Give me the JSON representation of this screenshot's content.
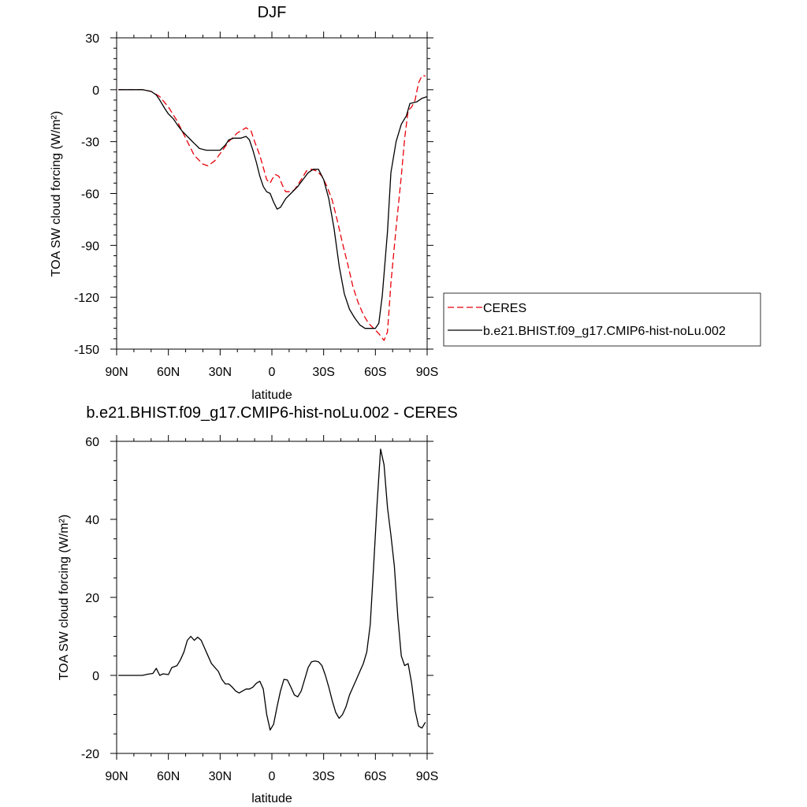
{
  "chart_data": [
    {
      "type": "line",
      "title": "DJF",
      "xlabel": "latitude",
      "ylabel": "TOA SW cloud forcing (W/m²)",
      "xlim": [
        90,
        -90
      ],
      "ylim": [
        -150,
        30
      ],
      "yticks": [
        30,
        0,
        -30,
        -60,
        -90,
        -120,
        -150
      ],
      "ytick_labels": [
        "30",
        "0",
        "-30",
        "-60",
        "-90",
        "-120",
        "-150"
      ],
      "xticks": [
        90,
        60,
        30,
        0,
        -30,
        -60,
        -90
      ],
      "xtick_labels": [
        "90N",
        "60N",
        "30N",
        "0",
        "30S",
        "60S",
        "90S"
      ],
      "grid": false,
      "legend_position": "right",
      "series": [
        {
          "name": "CERES",
          "color": "#e8000b",
          "dash": "dashed",
          "points": [
            [
              89,
              0
            ],
            [
              80,
              0
            ],
            [
              75,
              0
            ],
            [
              70,
              -1
            ],
            [
              65,
              -4
            ],
            [
              60,
              -10
            ],
            [
              55,
              -18
            ],
            [
              50,
              -28
            ],
            [
              45,
              -38
            ],
            [
              40,
              -43
            ],
            [
              37,
              -44
            ],
            [
              33,
              -41
            ],
            [
              30,
              -37
            ],
            [
              25,
              -30
            ],
            [
              20,
              -25
            ],
            [
              15,
              -22
            ],
            [
              12,
              -24
            ],
            [
              10,
              -30
            ],
            [
              7,
              -38
            ],
            [
              5,
              -45
            ],
            [
              3,
              -52
            ],
            [
              1,
              -54
            ],
            [
              0,
              -52
            ],
            [
              -2,
              -49
            ],
            [
              -4,
              -50
            ],
            [
              -6,
              -55
            ],
            [
              -8,
              -59
            ],
            [
              -10,
              -59
            ],
            [
              -13,
              -58
            ],
            [
              -17,
              -52
            ],
            [
              -20,
              -47
            ],
            [
              -23,
              -46
            ],
            [
              -26,
              -47
            ],
            [
              -29,
              -50
            ],
            [
              -32,
              -56
            ],
            [
              -35,
              -64
            ],
            [
              -38,
              -76
            ],
            [
              -41,
              -89
            ],
            [
              -44,
              -101
            ],
            [
              -47,
              -114
            ],
            [
              -50,
              -123
            ],
            [
              -53,
              -130
            ],
            [
              -56,
              -135
            ],
            [
              -59,
              -138
            ],
            [
              -62,
              -141
            ],
            [
              -65,
              -145
            ],
            [
              -67,
              -140
            ],
            [
              -69,
              -112
            ],
            [
              -72,
              -80
            ],
            [
              -75,
              -50
            ],
            [
              -77,
              -28
            ],
            [
              -79,
              -12
            ],
            [
              -81,
              -10
            ],
            [
              -83,
              -6
            ],
            [
              -85,
              4
            ],
            [
              -87,
              8
            ],
            [
              -89,
              8
            ]
          ]
        },
        {
          "name": "b.e21.BHIST.f09_g17.CMIP6-hist-noLu.002",
          "color": "#000000",
          "dash": "solid",
          "points": [
            [
              89,
              0
            ],
            [
              80,
              0
            ],
            [
              75,
              0
            ],
            [
              70,
              -1
            ],
            [
              67,
              -3
            ],
            [
              65,
              -6
            ],
            [
              62,
              -11
            ],
            [
              60,
              -14
            ],
            [
              57,
              -17
            ],
            [
              55,
              -20
            ],
            [
              52,
              -24
            ],
            [
              50,
              -26
            ],
            [
              47,
              -29
            ],
            [
              45,
              -31
            ],
            [
              42,
              -34
            ],
            [
              38,
              -35
            ],
            [
              35,
              -35
            ],
            [
              32,
              -35
            ],
            [
              30,
              -35
            ],
            [
              27,
              -32
            ],
            [
              25,
              -29
            ],
            [
              22,
              -28
            ],
            [
              18,
              -28
            ],
            [
              15,
              -27
            ],
            [
              13,
              -29
            ],
            [
              11,
              -35
            ],
            [
              9,
              -42
            ],
            [
              7,
              -50
            ],
            [
              5,
              -56
            ],
            [
              3,
              -59
            ],
            [
              1,
              -60
            ],
            [
              -1,
              -65
            ],
            [
              -3,
              -69
            ],
            [
              -5,
              -68
            ],
            [
              -8,
              -63
            ],
            [
              -11,
              -60
            ],
            [
              -15,
              -56
            ],
            [
              -18,
              -52
            ],
            [
              -21,
              -48
            ],
            [
              -24,
              -46
            ],
            [
              -27,
              -46
            ],
            [
              -30,
              -52
            ],
            [
              -33,
              -63
            ],
            [
              -36,
              -80
            ],
            [
              -39,
              -102
            ],
            [
              -42,
              -118
            ],
            [
              -45,
              -127
            ],
            [
              -48,
              -132
            ],
            [
              -51,
              -136
            ],
            [
              -54,
              -138
            ],
            [
              -57,
              -138
            ],
            [
              -60,
              -138
            ],
            [
              -62,
              -135
            ],
            [
              -64,
              -119
            ],
            [
              -67,
              -82
            ],
            [
              -69,
              -48
            ],
            [
              -72,
              -30
            ],
            [
              -75,
              -20
            ],
            [
              -78,
              -15
            ],
            [
              -80,
              -8
            ],
            [
              -84,
              -7
            ],
            [
              -87,
              -5
            ],
            [
              -90,
              -4
            ]
          ]
        }
      ]
    },
    {
      "type": "line",
      "title": "b.e21.BHIST.f09_g17.CMIP6-hist-noLu.002 - CERES",
      "xlabel": "latitude",
      "ylabel": "TOA SW cloud forcing (W/m²)",
      "xlim": [
        90,
        -90
      ],
      "ylim": [
        -20,
        60
      ],
      "yticks": [
        60,
        40,
        20,
        0,
        -20
      ],
      "ytick_labels": [
        "60",
        "40",
        "20",
        "0",
        "-20"
      ],
      "xticks": [
        90,
        60,
        30,
        0,
        -30,
        -60,
        -90
      ],
      "xtick_labels": [
        "90N",
        "60N",
        "30N",
        "0",
        "30S",
        "60S",
        "90S"
      ],
      "grid": false,
      "series": [
        {
          "color": "#000000",
          "dash": "solid",
          "points": [
            [
              89,
              0
            ],
            [
              80,
              0
            ],
            [
              75,
              0
            ],
            [
              72,
              0.3
            ],
            [
              69,
              0.5
            ],
            [
              67,
              1.8
            ],
            [
              65,
              0
            ],
            [
              63,
              0.4
            ],
            [
              60,
              0.2
            ],
            [
              58,
              2
            ],
            [
              55,
              2.5
            ],
            [
              53,
              4
            ],
            [
              51,
              6
            ],
            [
              49,
              9
            ],
            [
              47,
              10
            ],
            [
              45,
              9
            ],
            [
              43,
              9.8
            ],
            [
              41,
              9
            ],
            [
              39,
              7
            ],
            [
              37,
              5
            ],
            [
              35,
              3
            ],
            [
              33,
              2
            ],
            [
              31,
              1
            ],
            [
              29,
              -1
            ],
            [
              27,
              -2.2
            ],
            [
              25,
              -2.2
            ],
            [
              23,
              -3
            ],
            [
              21,
              -4
            ],
            [
              19,
              -4.5
            ],
            [
              17,
              -4
            ],
            [
              15,
              -3.5
            ],
            [
              13,
              -3.5
            ],
            [
              11,
              -3
            ],
            [
              9,
              -2
            ],
            [
              7,
              -1.5
            ],
            [
              5,
              -3.5
            ],
            [
              3,
              -10
            ],
            [
              1,
              -14
            ],
            [
              -1,
              -12.5
            ],
            [
              -3,
              -8
            ],
            [
              -5,
              -4
            ],
            [
              -7,
              -1
            ],
            [
              -9,
              -1.2
            ],
            [
              -11,
              -3
            ],
            [
              -13,
              -5
            ],
            [
              -15,
              -5.5
            ],
            [
              -17,
              -4
            ],
            [
              -19,
              -1
            ],
            [
              -21,
              2
            ],
            [
              -23,
              3.5
            ],
            [
              -25,
              3.7
            ],
            [
              -27,
              3.5
            ],
            [
              -29,
              2.5
            ],
            [
              -31,
              0
            ],
            [
              -33,
              -3
            ],
            [
              -35,
              -6.5
            ],
            [
              -37,
              -9.5
            ],
            [
              -39,
              -11
            ],
            [
              -41,
              -10
            ],
            [
              -43,
              -8
            ],
            [
              -45,
              -5
            ],
            [
              -47,
              -3
            ],
            [
              -49,
              -1
            ],
            [
              -51,
              1
            ],
            [
              -53,
              3
            ],
            [
              -55,
              6
            ],
            [
              -57,
              13
            ],
            [
              -59,
              28
            ],
            [
              -61,
              44
            ],
            [
              -63,
              58
            ],
            [
              -65,
              54
            ],
            [
              -67,
              43
            ],
            [
              -69,
              36
            ],
            [
              -71,
              28
            ],
            [
              -73,
              15
            ],
            [
              -75,
              5
            ],
            [
              -77,
              2.5
            ],
            [
              -79,
              3
            ],
            [
              -81,
              -2
            ],
            [
              -83,
              -9
            ],
            [
              -85,
              -13
            ],
            [
              -87,
              -13.5
            ],
            [
              -89,
              -12
            ]
          ]
        }
      ]
    }
  ]
}
